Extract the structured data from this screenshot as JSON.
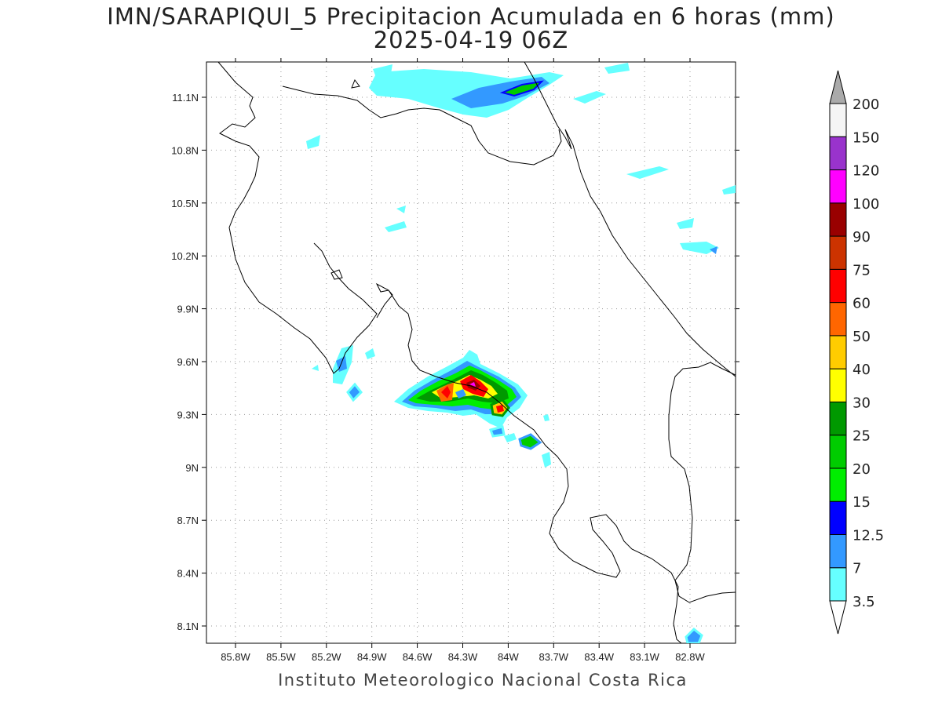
{
  "title": "IMN/SARAPIQUI_5 Precipitacion Acumulada en 6 horas (mm)",
  "subtitle": "2025-04-19 06Z",
  "footer": "Instituto Meteorologico Nacional Costa Rica",
  "map": {
    "lon_range": [
      -86.0,
      -83.0
    ],
    "lat_range": [
      8.0,
      11.3
    ],
    "x_ticks": [
      "85.8W",
      "85.5W",
      "85.2W",
      "84.9W",
      "84.6W",
      "84.3W",
      "84W",
      "83.7W",
      "83.4W",
      "83.1W",
      "82.8W"
    ],
    "y_ticks": [
      "11.1N",
      "10.8N",
      "10.5N",
      "10.2N",
      "9.9N",
      "9.6N",
      "9.3N",
      "9N",
      "8.7N",
      "8.4N",
      "8.1N"
    ],
    "grid": "dotted",
    "coastline_color": "#000000"
  },
  "colorbar": {
    "labels": [
      "3.5",
      "7",
      "12.5",
      "15",
      "20",
      "25",
      "30",
      "40",
      "50",
      "60",
      "75",
      "90",
      "100",
      "120",
      "150",
      "200"
    ],
    "colors": [
      "#66ffff",
      "#3399ff",
      "#0000ff",
      "#00ee00",
      "#00cc00",
      "#009900",
      "#ffff00",
      "#ffcc00",
      "#ff6600",
      "#ff0000",
      "#cc3300",
      "#990000",
      "#ff00ff",
      "#9933cc",
      "#f5f5f5",
      "#aaaaaa"
    ]
  }
}
